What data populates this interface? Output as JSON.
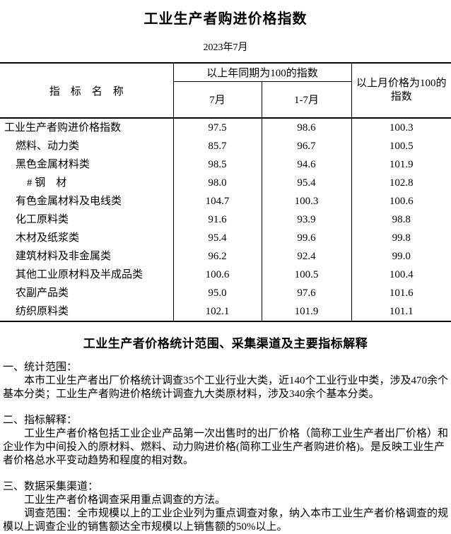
{
  "title": "工业生产者购进价格指数",
  "subtitle": "2023年7月",
  "colors": {
    "text": "#000000",
    "background": "#ffffff",
    "table_border": "#000000"
  },
  "table": {
    "indicator_header": "指　标　名　称",
    "group_header": "以上年同期为100的指数",
    "sub_headers": {
      "jul": "7月",
      "jan_jul": "1-7月"
    },
    "mom_header": "以上月价格为100的指数",
    "rows": [
      {
        "label": "工业生产者购进价格指数",
        "indent": 0,
        "jul": "97.5",
        "jan_jul": "98.6",
        "mom": "100.3"
      },
      {
        "label": "燃料、动力类",
        "indent": 1,
        "jul": "85.7",
        "jan_jul": "96.7",
        "mom": "100.5"
      },
      {
        "label": "黑色金属材料类",
        "indent": 1,
        "jul": "98.5",
        "jan_jul": "94.6",
        "mom": "101.9"
      },
      {
        "label": "# 钢　材",
        "indent": 2,
        "jul": "98.0",
        "jan_jul": "95.4",
        "mom": "102.8"
      },
      {
        "label": "有色金属材料及电线类",
        "indent": 1,
        "jul": "104.7",
        "jan_jul": "100.3",
        "mom": "100.6"
      },
      {
        "label": "化工原料类",
        "indent": 1,
        "jul": "91.6",
        "jan_jul": "93.9",
        "mom": "98.8"
      },
      {
        "label": "木材及纸浆类",
        "indent": 1,
        "jul": "95.4",
        "jan_jul": "99.6",
        "mom": "99.8"
      },
      {
        "label": "建筑材料及非金属类",
        "indent": 1,
        "jul": "96.2",
        "jan_jul": "92.4",
        "mom": "99.0"
      },
      {
        "label": "其他工业原材料及半成品类",
        "indent": 1,
        "jul": "100.6",
        "jan_jul": "100.5",
        "mom": "100.4"
      },
      {
        "label": "农副产品类",
        "indent": 1,
        "jul": "95.0",
        "jan_jul": "97.6",
        "mom": "101.6"
      },
      {
        "label": "纺织原料类",
        "indent": 1,
        "jul": "102.1",
        "jan_jul": "101.9",
        "mom": "101.1"
      }
    ]
  },
  "notes": {
    "heading": "工业生产者价格统计范围、采集渠道及主要指标解释",
    "sections": [
      {
        "title": "一、统计范围：",
        "paragraphs": [
          "本市工业生产者出厂价格统计调查35个工业行业大类，近140个工业行业中类，涉及470余个基本分类；工业生产者购进价格统计调查九大类原材料，涉及340余个基本分类。"
        ]
      },
      {
        "title": "二、指标解释：",
        "paragraphs": [
          "工业生产者价格包括工业企业产品第一次出售时的出厂价格（简称工业生产者出厂价格）和企业作为中间投入的原材料、燃料、动力购进价格(简称工业生产者购进价格)。是反映工业生产者价格总水平变动趋势和程度的相对数。"
        ]
      },
      {
        "title": "三、数据采集渠道：",
        "paragraphs": [
          "工业生产者价格调查采用重点调查的方法。",
          "调查范围：全市规模以上的工业企业列为重点调查对象，纳入本市工业生产者价格调查的规模以上调查企业的销售额达全市规模以上销售额的50%以上。"
        ]
      }
    ]
  }
}
